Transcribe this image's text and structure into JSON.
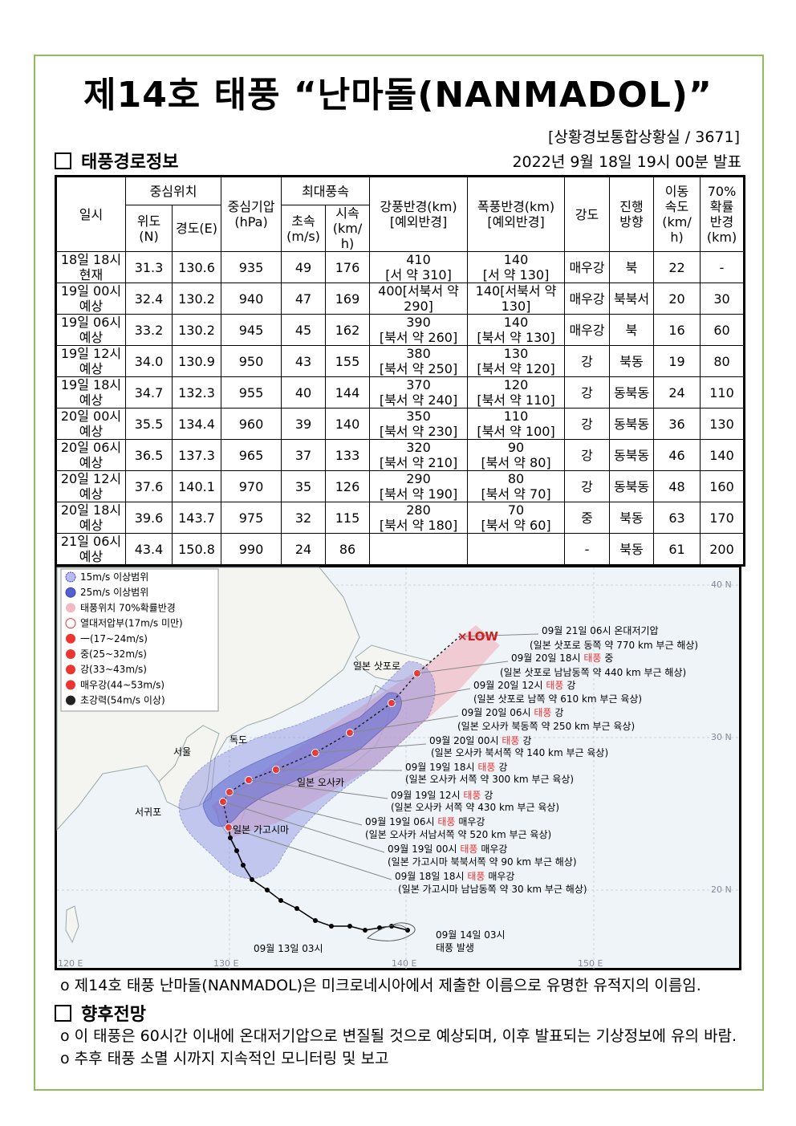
{
  "title": "제14호 태풍 “난마돌(NANMADOL)”",
  "source": "[상황경보통합상황실 / 3671]",
  "section_route": "태풍경로정보",
  "issued": "2022년 9월 18일 19시 00분 발표",
  "table": {
    "header": {
      "time": "일시",
      "center": "중심위치",
      "lat": "위도(N)",
      "lon": "경도(E)",
      "pressure": [
        "중심기압",
        "(hPa)"
      ],
      "maxwind": "최대풍속",
      "ms": [
        "초속",
        "(m/s)"
      ],
      "kmh": [
        "시속",
        "(km/h)"
      ],
      "gale": [
        "강풍반경(km)",
        "[예외반경]"
      ],
      "storm": [
        "폭풍반경(km)",
        "[예외반경]"
      ],
      "grade": "강도",
      "dir": [
        "진행",
        "방향"
      ],
      "speed": [
        "이동",
        "속도",
        "(km/h)"
      ],
      "r70": [
        "70%",
        "확률",
        "반경",
        "(km)"
      ]
    },
    "rows": [
      {
        "time": "18일 18시",
        "status": "현재",
        "lat": "31.3",
        "lon": "130.6",
        "pressure": "935",
        "ms": "49",
        "kmh": "176",
        "gale": [
          "410",
          "[서 약 310]"
        ],
        "storm": [
          "140",
          "[서 약 130]"
        ],
        "grade": "매우강",
        "dir": "북",
        "speed": "22",
        "r70": "-"
      },
      {
        "time": "19일 00시",
        "status": "예상",
        "lat": "32.4",
        "lon": "130.2",
        "pressure": "940",
        "ms": "47",
        "kmh": "169",
        "gale": [
          "400[서북서 약",
          "290]"
        ],
        "storm": [
          "140[서북서 약",
          "130]"
        ],
        "grade": "매우강",
        "dir": "북북서",
        "speed": "20",
        "r70": "30"
      },
      {
        "time": "19일 06시",
        "status": "예상",
        "lat": "33.2",
        "lon": "130.2",
        "pressure": "945",
        "ms": "45",
        "kmh": "162",
        "gale": [
          "390",
          "[북서 약 260]"
        ],
        "storm": [
          "140",
          "[북서 약 130]"
        ],
        "grade": "매우강",
        "dir": "북",
        "speed": "16",
        "r70": "60"
      },
      {
        "time": "19일 12시",
        "status": "예상",
        "lat": "34.0",
        "lon": "130.9",
        "pressure": "950",
        "ms": "43",
        "kmh": "155",
        "gale": [
          "380",
          "[북서 약 250]"
        ],
        "storm": [
          "130",
          "[북서 약 120]"
        ],
        "grade": "강",
        "dir": "북동",
        "speed": "19",
        "r70": "80"
      },
      {
        "time": "19일 18시",
        "status": "예상",
        "lat": "34.7",
        "lon": "132.3",
        "pressure": "955",
        "ms": "40",
        "kmh": "144",
        "gale": [
          "370",
          "[북서 약 240]"
        ],
        "storm": [
          "120",
          "[북서 약 110]"
        ],
        "grade": "강",
        "dir": "동북동",
        "speed": "24",
        "r70": "110"
      },
      {
        "time": "20일 00시",
        "status": "예상",
        "lat": "35.5",
        "lon": "134.4",
        "pressure": "960",
        "ms": "39",
        "kmh": "140",
        "gale": [
          "350",
          "[북서 약 230]"
        ],
        "storm": [
          "110",
          "[북서 약 100]"
        ],
        "grade": "강",
        "dir": "동북동",
        "speed": "36",
        "r70": "130"
      },
      {
        "time": "20일 06시",
        "status": "예상",
        "lat": "36.5",
        "lon": "137.3",
        "pressure": "965",
        "ms": "37",
        "kmh": "133",
        "gale": [
          "320",
          "[북서 약 210]"
        ],
        "storm": [
          "90",
          "[북서 약 80]"
        ],
        "grade": "강",
        "dir": "동북동",
        "speed": "46",
        "r70": "140"
      },
      {
        "time": "20일 12시",
        "status": "예상",
        "lat": "37.6",
        "lon": "140.1",
        "pressure": "970",
        "ms": "35",
        "kmh": "126",
        "gale": [
          "290",
          "[북서 약 190]"
        ],
        "storm": [
          "80",
          "[북서 약 70]"
        ],
        "grade": "강",
        "dir": "동북동",
        "speed": "48",
        "r70": "160"
      },
      {
        "time": "20일 18시",
        "status": "예상",
        "lat": "39.6",
        "lon": "143.7",
        "pressure": "975",
        "ms": "32",
        "kmh": "115",
        "gale": [
          "280",
          "[북서 약 180]"
        ],
        "storm": [
          "70",
          "[북서 약 60]"
        ],
        "grade": "중",
        "dir": "북동",
        "speed": "63",
        "r70": "170"
      },
      {
        "time": "21일 06시",
        "status": "예상",
        "lat": "43.4",
        "lon": "150.8",
        "pressure": "990",
        "ms": "24",
        "kmh": "86",
        "gale": [],
        "storm": [],
        "grade": "-",
        "dir": "북동",
        "speed": "61",
        "r70": "200"
      }
    ]
  },
  "map": {
    "legend": [
      "15m/s 이상범위",
      "25m/s 이상범위",
      "태풍위치 70%확률반경",
      "열대저압부(17m/s 미만)",
      "一(17~24m/s)",
      "중(25~32m/s)",
      "강(33~43m/s)",
      "매우강(44~53m/s)",
      "초강력(54m/s 이상)"
    ],
    "places": [
      "일본 삿포로",
      "독도",
      "서울",
      "일본 오사카",
      "서귀포",
      "일본 가고시마"
    ],
    "low": "×LOW",
    "annotations": [
      {
        "time": "09월 21일 06시 온대저기압",
        "desc": "(일본 삿포로 동쪽 약 770 km 부근 해상)"
      },
      {
        "time": "09월 20일 18시",
        "tag": "태풍",
        "grade": "중",
        "desc": "(일본 삿포로 남남동쪽 약 440 km 부근 해상)"
      },
      {
        "time": "09월 20일 12시",
        "tag": "태풍",
        "grade": "강",
        "desc": "(일본 삿포로 남쪽 약 610 km 부근 육상)"
      },
      {
        "time": "09월 20일 06시",
        "tag": "태풍",
        "grade": "강",
        "desc": "(일본 오사카 북동쪽 약 250 km 부근 육상)"
      },
      {
        "time": "09월 20일 00시",
        "tag": "태풍",
        "grade": "강",
        "desc": "(일본 오사카 북서쪽 약 140 km 부근 육상)"
      },
      {
        "time": "09월 19일 18시",
        "tag": "태풍",
        "grade": "강",
        "desc": "(일본 오사카 서쪽 약 300 km 부근 육상)"
      },
      {
        "time": "09월 19일 12시",
        "tag": "태풍",
        "grade": "강",
        "desc": "(일본 오사카 서쪽 약 430 km 부근 육상)"
      },
      {
        "time": "09월 19일 06시",
        "tag": "태풍",
        "grade": "매우강",
        "desc": "(일본 오사카 서남서쪽 약 520 km 부근 육상)"
      },
      {
        "time": "09월 19일 00시",
        "tag": "태풍",
        "grade": "매우강",
        "desc": "(일본 가고시마 북북서쪽 약 90 km 부근 해상)"
      },
      {
        "time": "09월 18일 18시",
        "tag": "태풍",
        "grade": "매우강",
        "desc": "(일본 가고시마 남남동쪽 약 30 km 부근 해상)"
      }
    ],
    "start": "09월 13일 03시",
    "genesis": [
      "09월 14일 03시",
      "태풍 발생"
    ],
    "lat_labels": [
      "40 N",
      "30 N",
      "20 N"
    ],
    "lon_labels": [
      "120 E",
      "130 E",
      "140 E",
      "150 E"
    ]
  },
  "notes": [
    "o 제14호 태풍 난마돌(NANMADOL)은 미크로네시아에서 제출한 이름으로 유명한 유적지의 이름임."
  ],
  "section_outlook": "향후전망",
  "outlook": [
    "o 이 태풍은 60시간 이내에 온대저기압으로 변질될 것으로 예상되며, 이후 발표되는 기상정보에 유의 바람.",
    "o 추후 태풍 소멸 시까지 지속적인 모니터링 및 보고"
  ]
}
